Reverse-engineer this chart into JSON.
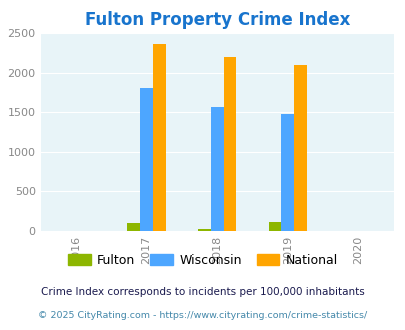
{
  "title": "Fulton Property Crime Index",
  "title_color": "#1874CD",
  "years": [
    2016,
    2017,
    2018,
    2019,
    2020
  ],
  "bar_years": [
    2017,
    2018,
    2019
  ],
  "fulton": [
    100,
    30,
    115
  ],
  "wisconsin": [
    1810,
    1560,
    1480
  ],
  "national": [
    2360,
    2200,
    2100
  ],
  "colors": {
    "fulton": "#8DB600",
    "wisconsin": "#4DA6FF",
    "national": "#FFA500"
  },
  "bar_width": 0.18,
  "ylim": [
    0,
    2500
  ],
  "yticks": [
    0,
    500,
    1000,
    1500,
    2000,
    2500
  ],
  "plot_bg": "#e8f4f8",
  "footnote1": "Crime Index corresponds to incidents per 100,000 inhabitants",
  "footnote2": "© 2025 CityRating.com - https://www.cityrating.com/crime-statistics/",
  "footnote1_color": "#1a1a4e",
  "footnote2_color": "#4488aa"
}
